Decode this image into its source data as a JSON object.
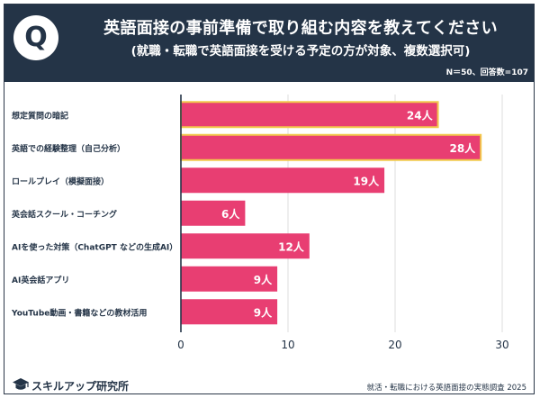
{
  "header": {
    "badge": "Q",
    "title": "英語面接の事前準備で取り組む内容を教えてください",
    "subtitle": "(就職・転職で英語面接を受ける予定の方が対象、複数選択可)",
    "meta": "N＝50、回答数=107"
  },
  "colors": {
    "header_bg": "#243447",
    "bar": "#e83e72",
    "highlight_border": "#f2c94c",
    "grid": "#dcdcdc",
    "axis": "#243447"
  },
  "chart_data": {
    "type": "bar",
    "orientation": "horizontal",
    "title": "英語面接の事前準備で取り組む内容を教えてください",
    "categories": [
      "想定質問の暗記",
      "英語での経験整理（自己分析）",
      "ロールプレイ（模擬面接）",
      "英会話スクール・コーチング",
      "AIを使った対策（ChatGPT などの生成AI）",
      "AI英会話アプリ",
      "YouTube動画・書籍などの教材活用"
    ],
    "values": [
      24,
      28,
      19,
      6,
      12,
      9,
      9
    ],
    "value_labels": [
      "24人",
      "28人",
      "19人",
      "6人",
      "12人",
      "9人",
      "9人"
    ],
    "highlighted": [
      0,
      1
    ],
    "xlim": [
      0,
      30
    ],
    "xticks": [
      "0",
      "10",
      "20",
      "30"
    ],
    "grid": true,
    "unit": "人"
  },
  "footer": {
    "brand": "スキルアップ研究所",
    "source": "就活・転職における英語面接の実態調査 2025"
  }
}
